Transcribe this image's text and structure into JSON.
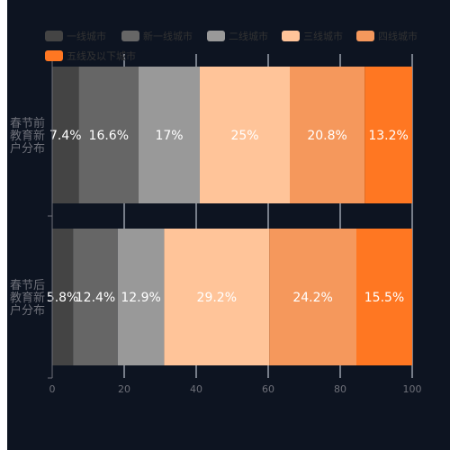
{
  "chart_data": {
    "type": "bar",
    "orientation": "horizontal",
    "stacked": true,
    "categories": [
      "春节后\n教育新\n户分布",
      "春节前\n教育新\n户分布"
    ],
    "series": [
      {
        "name": "一线城市",
        "values": [
          5.8,
          7.4
        ],
        "color": "#444444",
        "labels": [
          "5.8%",
          "7.4%"
        ]
      },
      {
        "name": "新一线城市",
        "values": [
          12.4,
          16.6
        ],
        "color": "#666666",
        "labels": [
          "12.4%",
          "16.6%"
        ]
      },
      {
        "name": "二线城市",
        "values": [
          12.9,
          17
        ],
        "color": "#999999",
        "labels": [
          "12.9%",
          "17%"
        ]
      },
      {
        "name": "三线城市",
        "values": [
          29.2,
          25
        ],
        "color": "#FFC499",
        "labels": [
          "29.2%",
          "25%"
        ]
      },
      {
        "name": "四线城市",
        "values": [
          24.2,
          20.8
        ],
        "color": "#F5985C",
        "labels": [
          "24.2%",
          "20.8%"
        ]
      },
      {
        "name": "五线及以下城市",
        "values": [
          15.5,
          13.2
        ],
        "color": "#FF7722",
        "labels": [
          "15.5%",
          "13.2%"
        ]
      }
    ],
    "xlim": [
      0,
      100
    ],
    "x_ticks": [
      "0",
      "20",
      "40",
      "60",
      "80",
      "100"
    ],
    "grid": true,
    "legend_position": "top-left",
    "colors": {
      "background": "#0d1421",
      "axis_text": "#6e7079",
      "legend_text": "#333333",
      "grid": "#e0e6f1",
      "axis_line": "#6e7079",
      "bar_label": "#ffffff"
    }
  }
}
